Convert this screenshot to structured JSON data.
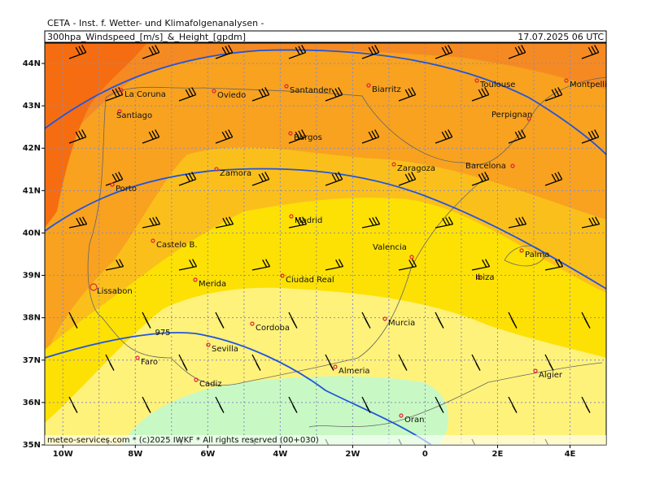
{
  "header": {
    "title": "CETA - Inst. f. Wetter- und Klimafolgenanalysen -",
    "subtitle": "300hpa_Windspeed_[m/s]_&_Height_[gpdm]",
    "date": "17.07.2025 06 UTC"
  },
  "axes": {
    "lat_labels": [
      "44N",
      "43N",
      "42N",
      "41N",
      "40N",
      "39N",
      "38N",
      "37N",
      "36N",
      "35N"
    ],
    "lon_labels": [
      "10W",
      "8W",
      "6W",
      "4W",
      "2W",
      "0",
      "2E",
      "4E"
    ]
  },
  "contour_label": "975",
  "cities": [
    "La Coruna",
    "Oviedo",
    "Santander",
    "Biarritz",
    "Toulouse",
    "Montpellier",
    "Santiago",
    "Perpignan",
    "Burgos",
    "Zaragoza",
    "Barcelona",
    "Zamora",
    "Porto",
    "Madrid",
    "Castelo B.",
    "Palma",
    "Valencia",
    "Lissabon",
    "Merida",
    "Ciudad Real",
    "Ibiza",
    "Cordoba",
    "Murcia",
    "Sevilla",
    "Faro",
    "Almeria",
    "Algier",
    "Cadiz",
    "Oran"
  ],
  "footer": "meteo-services.com * (c)2025 IWKF * All rights reserved (00+030)"
}
